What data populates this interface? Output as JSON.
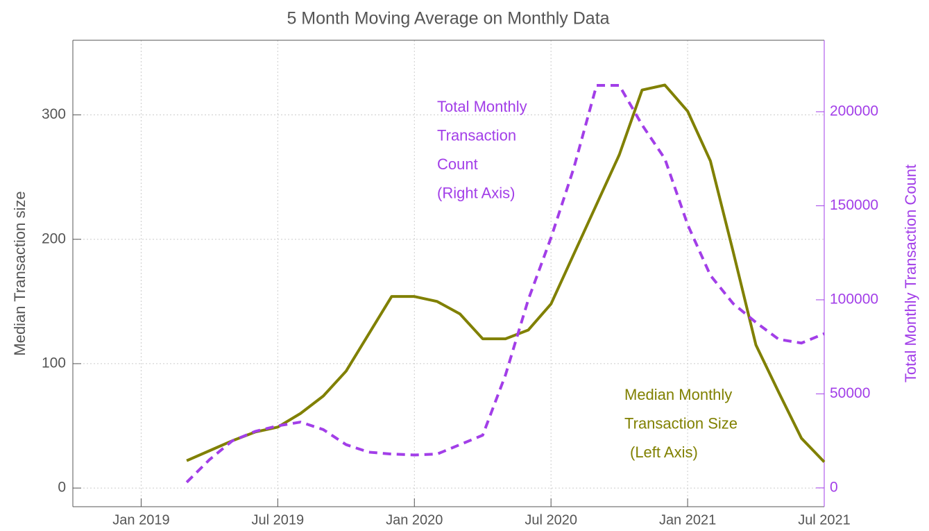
{
  "chart_data": {
    "type": "line",
    "title": "5 Month Moving Average on Monthly Data",
    "y_label": "Median Transaction size",
    "y2_label": "Total Monthly Transaction Count",
    "x": [
      "2019-03",
      "2019-04",
      "2019-05",
      "2019-06",
      "2019-07",
      "2019-08",
      "2019-09",
      "2019-10",
      "2019-11",
      "2019-12",
      "2020-01",
      "2020-02",
      "2020-03",
      "2020-04",
      "2020-05",
      "2020-06",
      "2020-07",
      "2020-08",
      "2020-09",
      "2020-10",
      "2020-11",
      "2020-12",
      "2021-01",
      "2021-02",
      "2021-03",
      "2021-04",
      "2021-05",
      "2021-06",
      "2021-07"
    ],
    "series": [
      {
        "color": "#808000",
        "axis": "y",
        "dash": false,
        "values": [
          22,
          30,
          38,
          45,
          49,
          60,
          74,
          94,
          124,
          154,
          154,
          150,
          140,
          120,
          120,
          127,
          148,
          188,
          228,
          268,
          320,
          324,
          303,
          263,
          190,
          115,
          77,
          40,
          21
        ]
      },
      {
        "color": "#a23ee8",
        "axis": "y2",
        "dash": true,
        "values": [
          3000,
          15000,
          25000,
          30000,
          33000,
          35000,
          31000,
          23000,
          19000,
          18000,
          17500,
          18000,
          23000,
          28000,
          60000,
          100000,
          133000,
          170000,
          214000,
          214000,
          193000,
          175000,
          140000,
          113000,
          98000,
          88000,
          79000,
          77000,
          82000
        ]
      }
    ],
    "xlim": [
      "2018-10",
      "2021-07"
    ],
    "xticks": [
      {
        "value": "2019-01",
        "label": "Jan 2019"
      },
      {
        "value": "2019-07",
        "label": "Jul 2019"
      },
      {
        "value": "2020-01",
        "label": "Jan 2020"
      },
      {
        "value": "2020-07",
        "label": "Jul 2020"
      },
      {
        "value": "2021-01",
        "label": "Jan 2021"
      },
      {
        "value": "2021-07",
        "label": "Jul 2021"
      }
    ],
    "ylim": [
      -15,
      360
    ],
    "yticks": [
      0,
      100,
      200,
      300
    ],
    "y2lim": [
      -10000,
      238000
    ],
    "y2ticks": [
      0,
      50000,
      100000,
      150000,
      200000
    ],
    "grid": true,
    "annotations": [
      {
        "color": "#a23ee8",
        "lines": [
          "Total Monthly",
          "Transaction",
          "Count",
          "(Right Axis)"
        ]
      },
      {
        "color": "#808000",
        "lines": [
          "Median Monthly",
          "Transaction Size",
          "(Left Axis)"
        ]
      }
    ]
  }
}
